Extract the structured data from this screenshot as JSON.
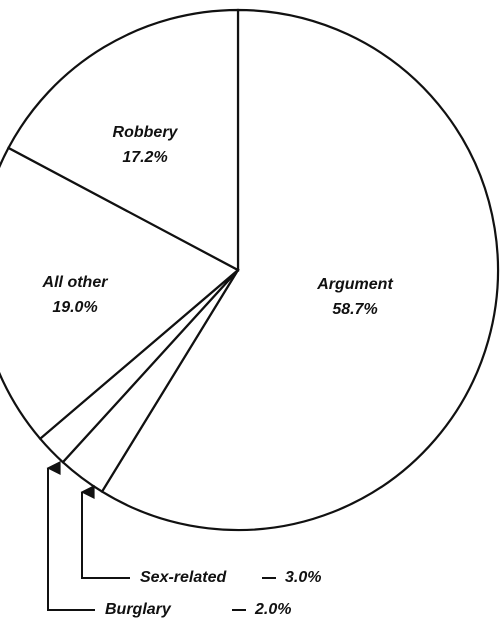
{
  "chart_data": {
    "type": "pie",
    "categories": [
      "Argument",
      "Sex-related",
      "Burglary",
      "All other",
      "Robbery"
    ],
    "values": [
      58.7,
      3.0,
      2.0,
      19.0,
      17.2
    ],
    "value_labels": [
      "58.7%",
      "3.0%",
      "2.0%",
      "19.0%",
      "17.2%"
    ]
  }
}
